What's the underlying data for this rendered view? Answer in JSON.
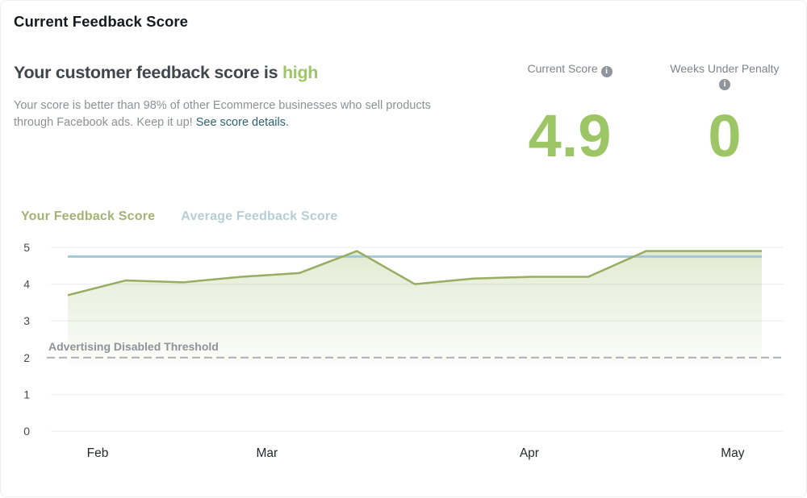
{
  "page": {
    "title": "Current Feedback Score"
  },
  "headline": {
    "prefix": "Your customer feedback score is ",
    "highlight": "high"
  },
  "description": {
    "text": "Your score is better than 98% of other Ecommerce businesses who sell products through Facebook ads. Keep it up! ",
    "link": "See score details."
  },
  "stats": [
    {
      "label": "Current Score",
      "value": "4.9"
    },
    {
      "label": "Weeks Under Penalty",
      "value": "0"
    }
  ],
  "legend": [
    {
      "label": "Your Feedback Score",
      "color": "#a3b374"
    },
    {
      "label": "Average Feedback Score",
      "color": "#b7cdd6"
    }
  ],
  "chart_data": {
    "type": "line",
    "title": "Feedback score over time",
    "xlabel": "",
    "ylabel": "",
    "ylim": [
      0,
      5
    ],
    "yticks": [
      0,
      1,
      2,
      3,
      4,
      5
    ],
    "x_axis": {
      "labels": [
        "Feb",
        "Mar",
        "Apr",
        "May"
      ],
      "label_positions": [
        0.043,
        0.287,
        0.665,
        0.958
      ]
    },
    "grid": true,
    "series": [
      {
        "name": "Your Feedback Score",
        "type": "area-line",
        "color": "#97ad62",
        "fill": "#96b25c",
        "values": [
          3.7,
          4.1,
          4.05,
          4.2,
          4.3,
          4.9,
          4.0,
          4.15,
          4.2,
          4.2,
          4.9,
          4.9,
          4.9
        ]
      },
      {
        "name": "Average Feedback Score",
        "type": "line",
        "color": "#a3c7d4",
        "constant": 4.75
      }
    ],
    "threshold": {
      "label": "Advertising Disabled Threshold",
      "value": 2
    }
  }
}
